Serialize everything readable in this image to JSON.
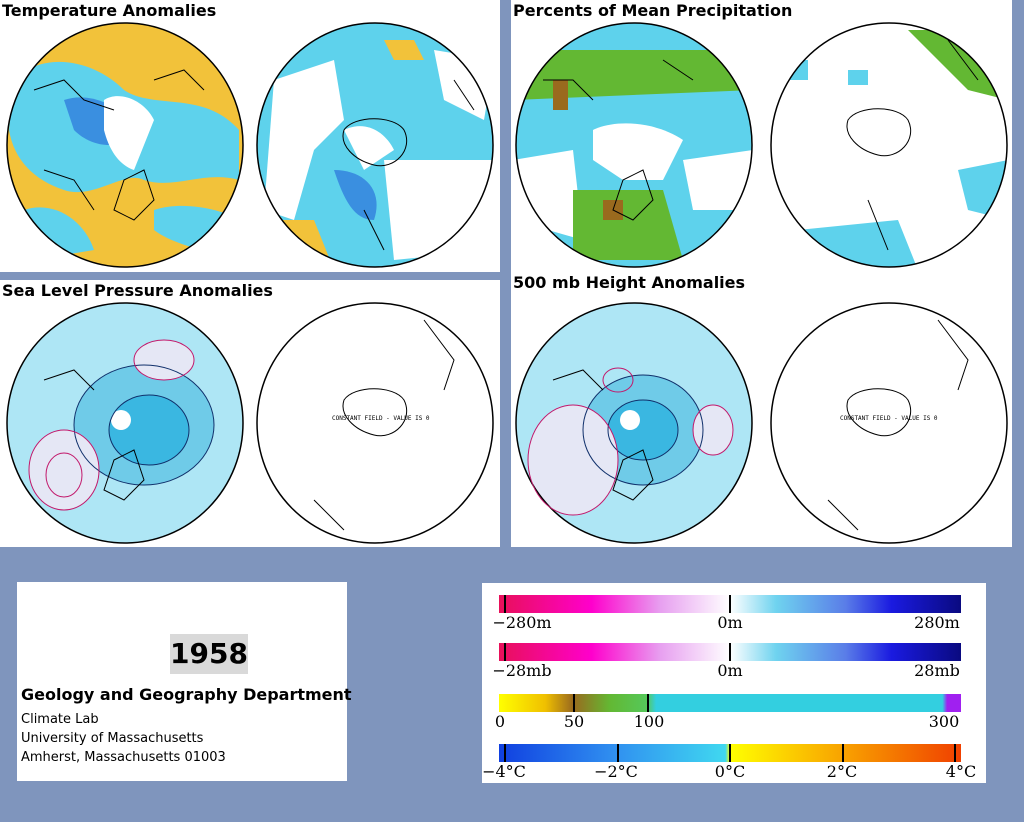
{
  "panels": {
    "temperature": {
      "title": "Temperature Anomalies"
    },
    "precipitation": {
      "title": "Percents of Mean Precipitation"
    },
    "slp": {
      "title": "Sea Level Pressure Anomalies",
      "constant_note": "CONSTANT FIELD - VALUE IS 0"
    },
    "height500": {
      "title": "500 mb Height Anomalies",
      "constant_note": "CONSTANT FIELD - VALUE IS 0"
    }
  },
  "info": {
    "year": "1958",
    "department": "Geology and Geography Department",
    "lines": [
      "Climate Lab",
      "University of Massachusetts",
      "Amherst, Massachusetts 01003"
    ]
  },
  "legend": {
    "height_bar": {
      "labels": [
        "−280m",
        "0m",
        "280m"
      ]
    },
    "pressure_bar": {
      "labels": [
        "−28mb",
        "0m",
        "28mb"
      ]
    },
    "precip_bar": {
      "labels": [
        "0",
        "50",
        "100",
        "300"
      ]
    },
    "temp_bar": {
      "labels": [
        "−4°C",
        "−2°C",
        "0°C",
        "2°C",
        "4°C"
      ]
    }
  },
  "colors": {
    "background": "#7f95bd",
    "warm_anomaly": "#f2c23a",
    "cool_anomaly": "#5ed2ec",
    "strong_cool": "#2f6fd6",
    "precip_green": "#63b833",
    "precip_brown": "#9a6a1e",
    "positive_contour": "#c2186b",
    "negative_contour": "#10306b"
  }
}
